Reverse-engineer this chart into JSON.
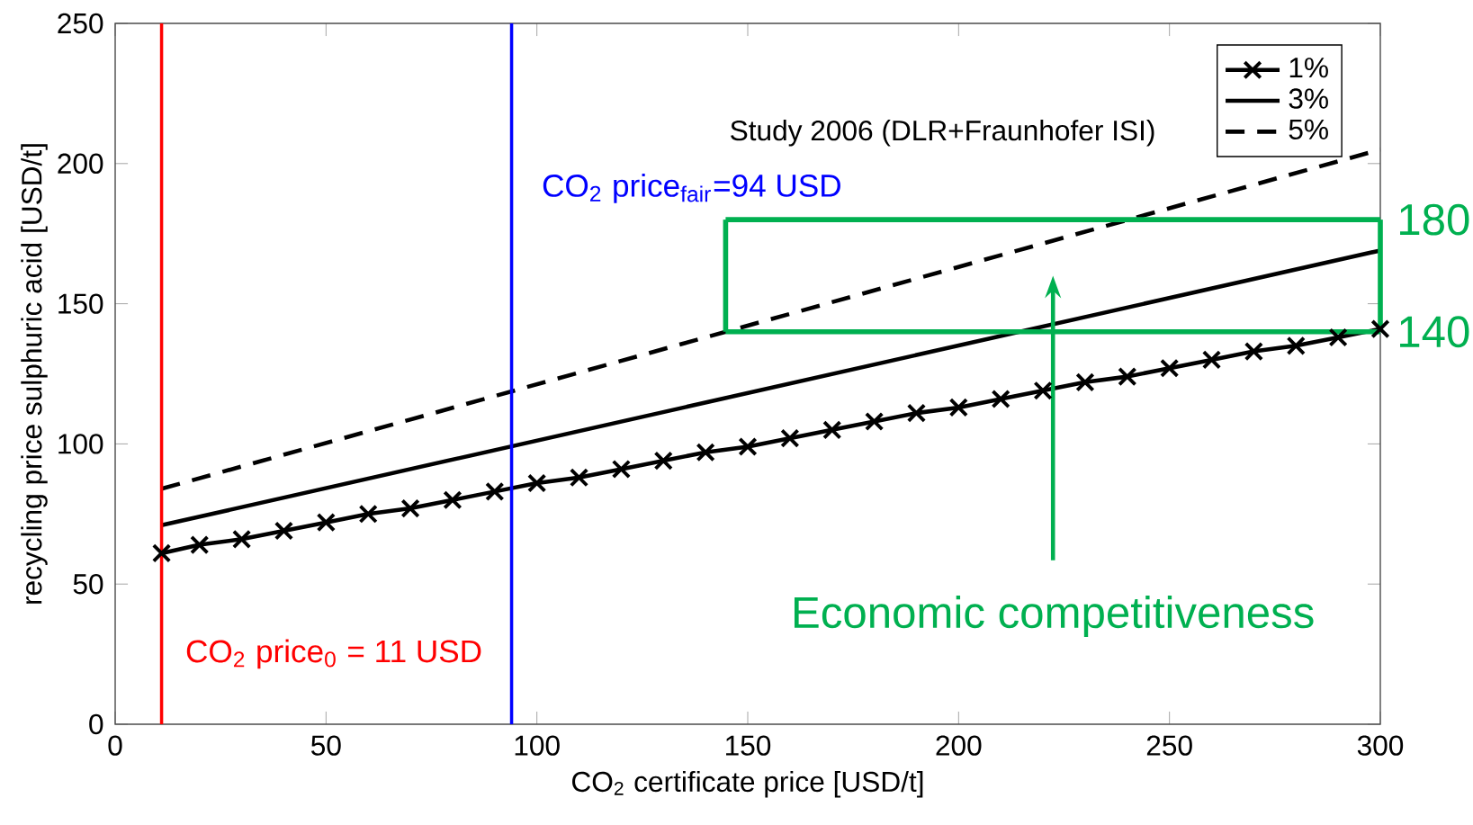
{
  "chart_data": {
    "type": "line",
    "xlabel": "CO$_{2}$ certificate price [USD/t]",
    "ylabel": "recycling price sulphuric acid [USD/t]",
    "xlim": [
      0,
      300
    ],
    "ylim": [
      0,
      250
    ],
    "xticks": [
      0,
      50,
      100,
      150,
      200,
      250,
      300
    ],
    "yticks": [
      0,
      50,
      100,
      150,
      200,
      250
    ],
    "legend": "top right",
    "series": [
      {
        "name": "1%",
        "color": "#000000",
        "marker": "cross",
        "line_style": "solid",
        "x": [
          11,
          20,
          30,
          40,
          50,
          60,
          70,
          80,
          90,
          100,
          110,
          120,
          130,
          140,
          150,
          160,
          170,
          180,
          190,
          200,
          210,
          220,
          230,
          240,
          250,
          260,
          270,
          280,
          290,
          300
        ],
        "values": [
          61,
          64,
          66,
          69,
          72,
          75,
          77,
          80,
          83,
          86,
          88,
          91,
          94,
          97,
          99,
          102,
          105,
          108,
          111,
          113,
          116,
          119,
          122,
          124,
          127,
          130,
          133,
          135,
          138,
          141
        ]
      },
      {
        "name": "3%",
        "color": "#000000",
        "marker": "none",
        "line_style": "solid",
        "x": [
          11,
          300
        ],
        "values": [
          71,
          169
        ]
      },
      {
        "name": "5%",
        "color": "#000000",
        "marker": "none",
        "line_style": "dashed",
        "x": [
          11,
          300
        ],
        "values": [
          84,
          205
        ]
      }
    ],
    "ref_lines": [
      {
        "axis": "x",
        "value": 11,
        "label": "CO$_{2}$ price$_{0}$ = 11 USD",
        "color": "#ff0000"
      },
      {
        "axis": "x",
        "value": 94,
        "label": "CO$_{2}$ price$_{fair}$=94 USD",
        "color": "#0000ff"
      },
      {
        "axis": "y",
        "value": 180,
        "label": "180",
        "color": "#00b050"
      },
      {
        "axis": "y",
        "value": 140,
        "label": "140",
        "color": "#00b050"
      }
    ],
    "annotations": [
      "Study 2006 (DLR+Fraunhofer ISI)",
      "Economic competitiveness"
    ]
  }
}
